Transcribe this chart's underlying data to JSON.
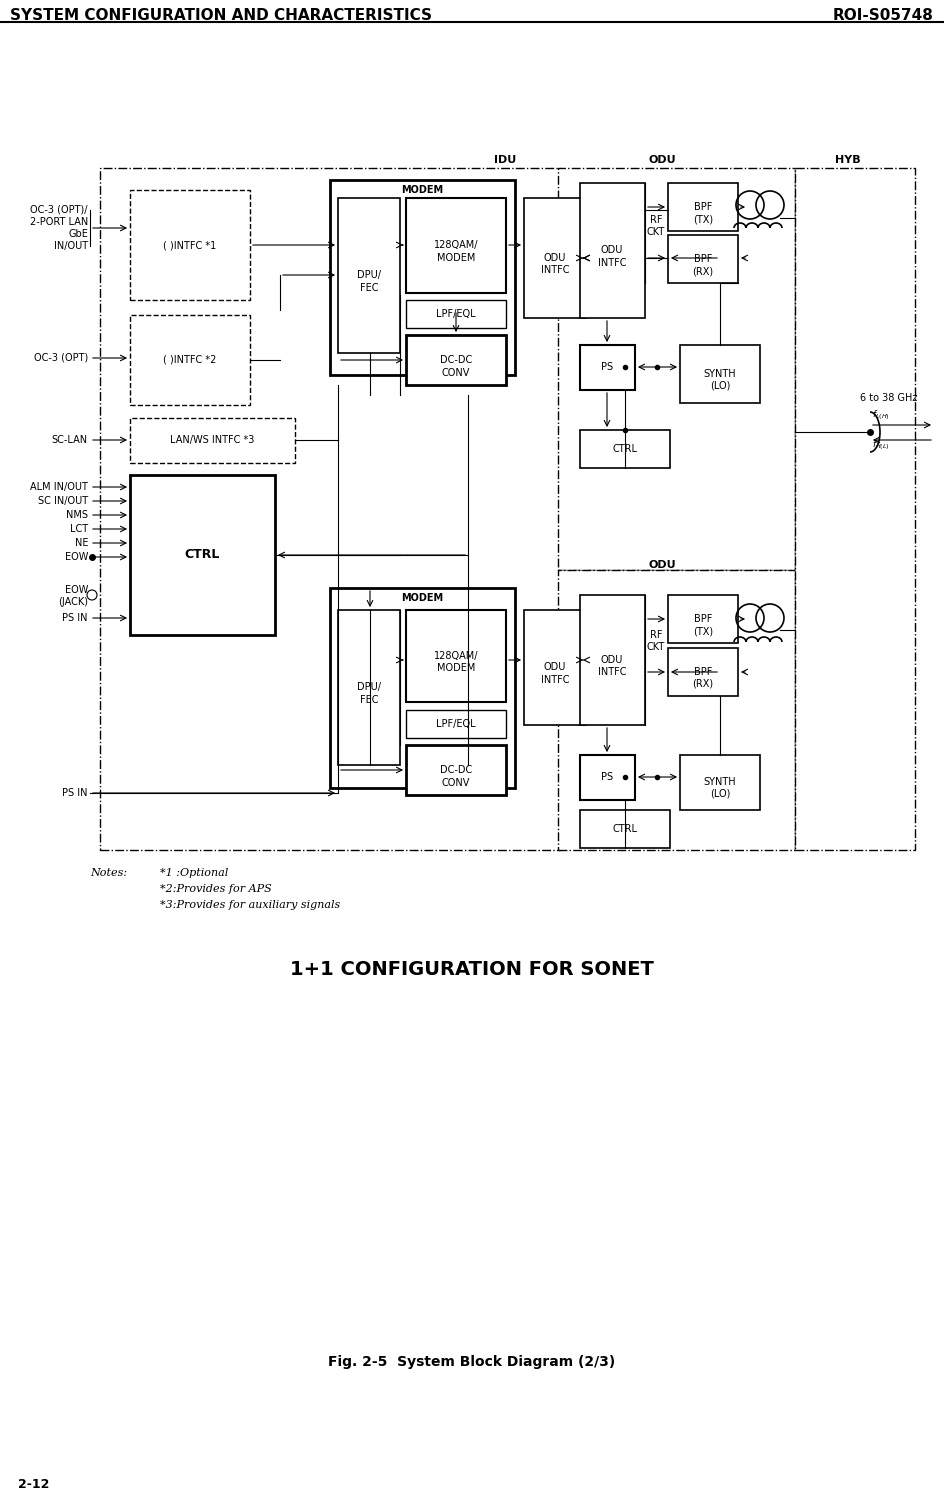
{
  "page_title": "SYSTEM CONFIGURATION AND CHARACTERISTICS",
  "page_title_right": "ROI-S05748",
  "fig_caption": "Fig. 2-5  System Block Diagram (2/3)",
  "diagram_title": "1+1 CONFIGURATION FOR SONET",
  "page_number": "2-12",
  "bg_color": "#ffffff"
}
